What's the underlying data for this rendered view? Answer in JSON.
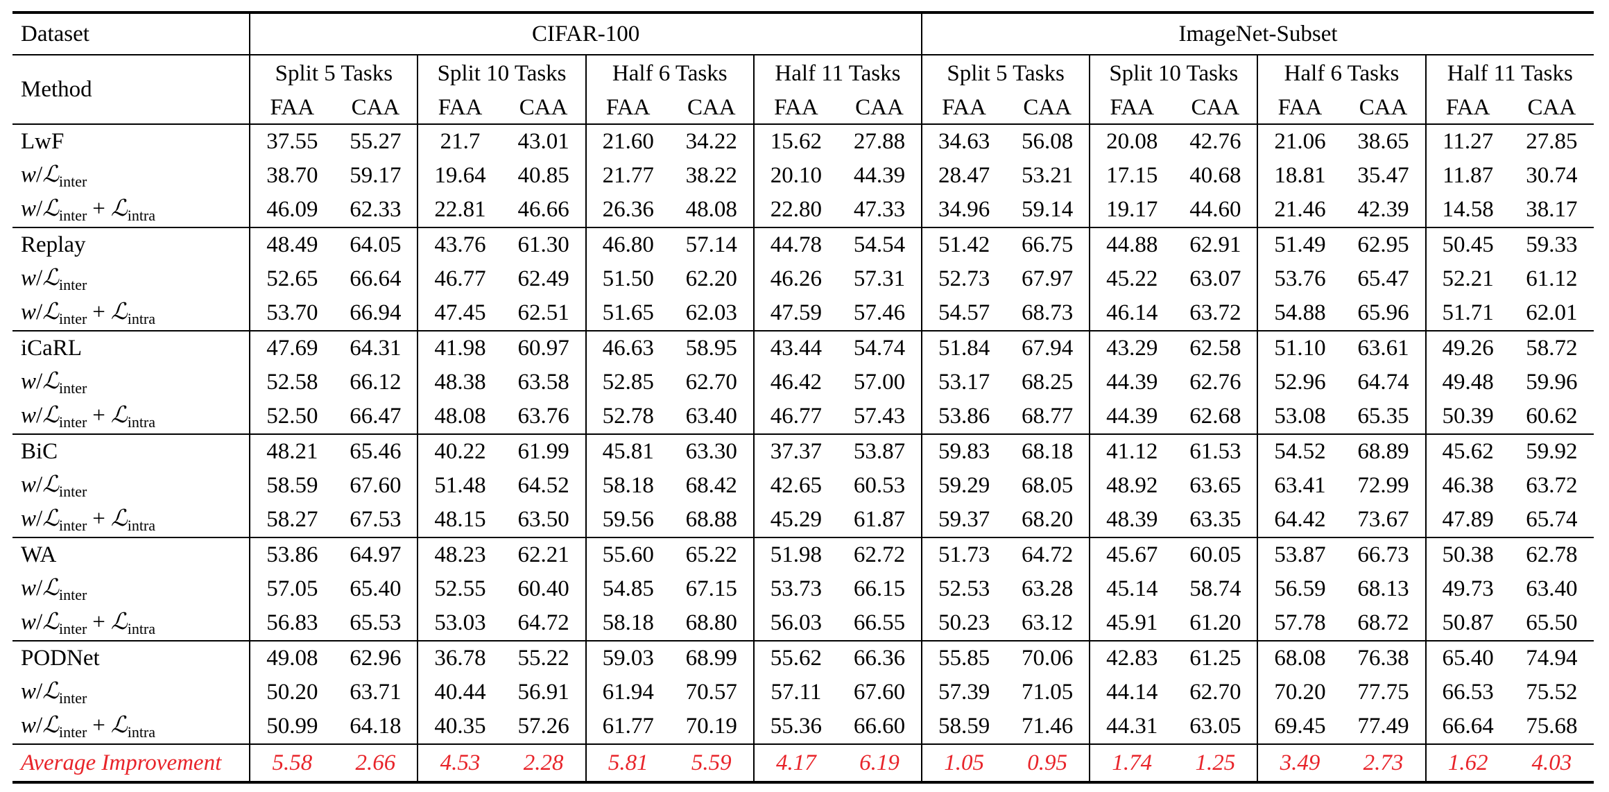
{
  "table": {
    "header": {
      "dataset_label": "Dataset",
      "method_label": "Method",
      "datasets": [
        "CIFAR-100",
        "ImageNet-Subset"
      ],
      "splits": [
        "Split 5 Tasks",
        "Split 10 Tasks",
        "Half 6 Tasks",
        "Half 11 Tasks",
        "Split 5 Tasks",
        "Split 10 Tasks",
        "Half 6 Tasks",
        "Half 11 Tasks"
      ],
      "metrics": [
        "FAA",
        "CAA",
        "FAA",
        "CAA",
        "FAA",
        "CAA",
        "FAA",
        "CAA",
        "FAA",
        "CAA",
        "FAA",
        "CAA",
        "FAA",
        "CAA",
        "FAA",
        "CAA"
      ]
    },
    "variant_labels": {
      "w": "w",
      "slash": "/",
      "L": "ℒ",
      "inter": "inter",
      "intra": "intra",
      "plus": "+"
    },
    "groups": [
      {
        "method": "LwF",
        "rows": [
          {
            "values": [
              "37.55",
              "55.27",
              "21.7",
              "43.01",
              "21.60",
              "34.22",
              "15.62",
              "27.88",
              "34.63",
              "56.08",
              "20.08",
              "42.76",
              "21.06",
              "38.65",
              "11.27",
              "27.85"
            ],
            "bold": []
          },
          {
            "values": [
              "38.70",
              "59.17",
              "19.64",
              "40.85",
              "21.77",
              "38.22",
              "20.10",
              "44.39",
              "28.47",
              "53.21",
              "17.15",
              "40.68",
              "18.81",
              "35.47",
              "11.87",
              "30.74"
            ],
            "bold": []
          },
          {
            "values": [
              "46.09",
              "62.33",
              "22.81",
              "46.66",
              "26.36",
              "48.08",
              "22.80",
              "47.33",
              "34.96",
              "59.14",
              "19.17",
              "44.60",
              "21.46",
              "42.39",
              "14.58",
              "38.17"
            ],
            "bold": [
              0,
              1,
              2,
              3,
              4,
              5,
              6,
              7,
              8,
              9,
              10,
              11,
              12,
              13,
              14,
              15
            ]
          }
        ]
      },
      {
        "method": "Replay",
        "rows": [
          {
            "values": [
              "48.49",
              "64.05",
              "43.76",
              "61.30",
              "46.80",
              "57.14",
              "44.78",
              "54.54",
              "51.42",
              "66.75",
              "44.88",
              "62.91",
              "51.49",
              "62.95",
              "50.45",
              "59.33"
            ],
            "bold": []
          },
          {
            "values": [
              "52.65",
              "66.64",
              "46.77",
              "62.49",
              "51.50",
              "62.20",
              "46.26",
              "57.31",
              "52.73",
              "67.97",
              "45.22",
              "63.07",
              "53.76",
              "65.47",
              "52.21",
              "61.12"
            ],
            "bold": [
              5,
              14
            ]
          },
          {
            "values": [
              "53.70",
              "66.94",
              "47.45",
              "62.51",
              "51.65",
              "62.03",
              "47.59",
              "57.46",
              "54.57",
              "68.73",
              "46.14",
              "63.72",
              "54.88",
              "65.96",
              "51.71",
              "62.01"
            ],
            "bold": [
              0,
              1,
              2,
              3,
              4,
              6,
              7,
              8,
              9,
              10,
              11,
              12,
              13,
              15
            ]
          }
        ]
      },
      {
        "method": "iCaRL",
        "rows": [
          {
            "values": [
              "47.69",
              "64.31",
              "41.98",
              "60.97",
              "46.63",
              "58.95",
              "43.44",
              "54.74",
              "51.84",
              "67.94",
              "43.29",
              "62.58",
              "51.10",
              "63.61",
              "49.26",
              "58.72"
            ],
            "bold": []
          },
          {
            "values": [
              "52.58",
              "66.12",
              "48.38",
              "63.58",
              "52.85",
              "62.70",
              "46.42",
              "57.00",
              "53.17",
              "68.25",
              "44.39",
              "62.76",
              "52.96",
              "64.74",
              "49.48",
              "59.96"
            ],
            "bold": [
              0,
              2,
              4,
              11
            ]
          },
          {
            "values": [
              "52.50",
              "66.47",
              "48.08",
              "63.76",
              "52.78",
              "63.40",
              "46.77",
              "57.43",
              "53.86",
              "68.77",
              "44.39",
              "62.68",
              "53.08",
              "65.35",
              "50.39",
              "60.62"
            ],
            "bold": [
              1,
              3,
              5,
              6,
              7,
              8,
              9,
              10,
              12,
              13,
              14,
              15
            ]
          }
        ]
      },
      {
        "method": "BiC",
        "rows": [
          {
            "values": [
              "48.21",
              "65.46",
              "40.22",
              "61.99",
              "45.81",
              "63.30",
              "37.37",
              "53.87",
              "59.83",
              "68.18",
              "41.12",
              "61.53",
              "54.52",
              "68.89",
              "45.62",
              "59.92"
            ],
            "bold": []
          },
          {
            "values": [
              "58.59",
              "67.60",
              "51.48",
              "64.52",
              "58.18",
              "68.42",
              "42.65",
              "60.53",
              "59.29",
              "68.05",
              "48.92",
              "63.65",
              "63.41",
              "72.99",
              "46.38",
              "63.72"
            ],
            "bold": [
              0,
              1,
              2,
              3,
              10,
              11
            ]
          },
          {
            "values": [
              "58.27",
              "67.53",
              "48.15",
              "63.50",
              "59.56",
              "68.88",
              "45.29",
              "61.87",
              "59.37",
              "68.20",
              "48.39",
              "63.35",
              "64.42",
              "73.67",
              "47.89",
              "65.74"
            ],
            "bold": [
              4,
              5,
              6,
              7,
              8,
              9,
              12,
              13,
              14,
              15
            ]
          }
        ]
      },
      {
        "method": "WA",
        "rows": [
          {
            "values": [
              "53.86",
              "64.97",
              "48.23",
              "62.21",
              "55.60",
              "65.22",
              "51.98",
              "62.72",
              "51.73",
              "64.72",
              "45.67",
              "60.05",
              "53.87",
              "66.73",
              "50.38",
              "62.78"
            ],
            "bold": [
              9
            ]
          },
          {
            "values": [
              "57.05",
              "65.40",
              "52.55",
              "60.40",
              "54.85",
              "67.15",
              "53.73",
              "66.15",
              "52.53",
              "63.28",
              "45.14",
              "58.74",
              "56.59",
              "68.13",
              "49.73",
              "63.40"
            ],
            "bold": [
              0,
              8
            ]
          },
          {
            "values": [
              "56.83",
              "65.53",
              "53.03",
              "64.72",
              "58.18",
              "68.80",
              "56.03",
              "66.55",
              "50.23",
              "63.12",
              "45.91",
              "61.20",
              "57.78",
              "68.72",
              "50.87",
              "65.50"
            ],
            "bold": [
              1,
              2,
              3,
              4,
              5,
              6,
              7,
              10,
              11,
              12,
              13,
              14,
              15
            ]
          }
        ]
      },
      {
        "method": "PODNet",
        "rows": [
          {
            "values": [
              "49.08",
              "62.96",
              "36.78",
              "55.22",
              "59.03",
              "68.99",
              "55.62",
              "66.36",
              "55.85",
              "70.06",
              "42.83",
              "61.25",
              "68.08",
              "76.38",
              "65.40",
              "74.94"
            ],
            "bold": []
          },
          {
            "values": [
              "50.20",
              "63.71",
              "40.44",
              "56.91",
              "61.94",
              "70.57",
              "57.11",
              "67.60",
              "57.39",
              "71.05",
              "44.14",
              "62.70",
              "70.20",
              "77.75",
              "66.53",
              "75.52"
            ],
            "bold": [
              2,
              4,
              5,
              6,
              7,
              12,
              13
            ]
          },
          {
            "values": [
              "50.99",
              "64.18",
              "40.35",
              "57.26",
              "61.77",
              "70.19",
              "55.36",
              "66.60",
              "58.59",
              "71.46",
              "44.31",
              "63.05",
              "69.45",
              "77.49",
              "66.64",
              "75.68"
            ],
            "bold": [
              0,
              1,
              3,
              8,
              9,
              10,
              11,
              14,
              15
            ]
          }
        ]
      }
    ],
    "average": {
      "label": "Average Improvement",
      "values": [
        "5.58",
        "2.66",
        "4.53",
        "2.28",
        "5.81",
        "5.59",
        "4.17",
        "6.19",
        "1.05",
        "0.95",
        "1.74",
        "1.25",
        "3.49",
        "2.73",
        "1.62",
        "4.03"
      ],
      "color": "#e8242a"
    }
  }
}
